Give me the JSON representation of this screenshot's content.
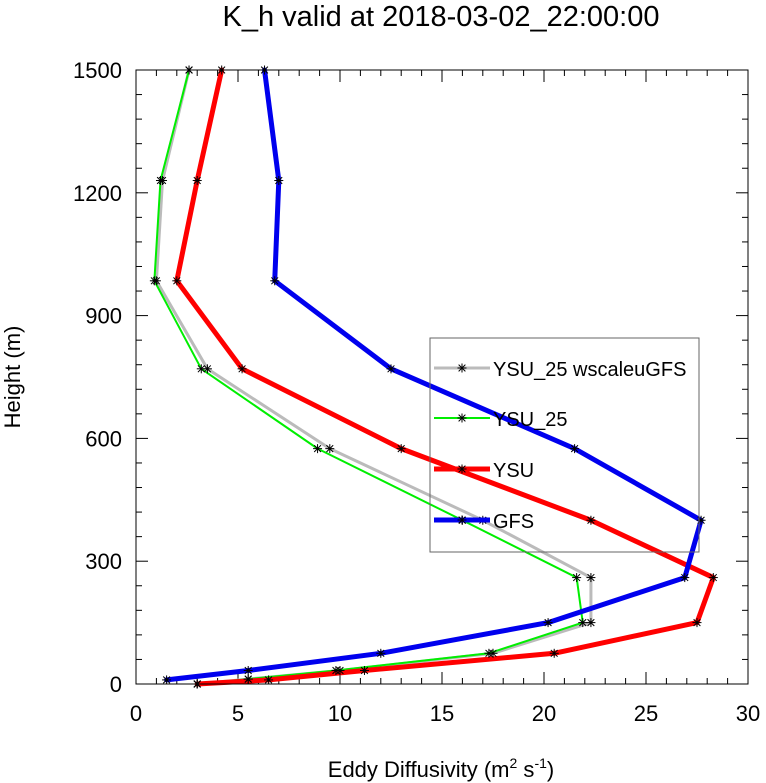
{
  "chart_data": {
    "type": "line",
    "title": "K_h valid at 2018-03-02_22:00:00",
    "xlabel": "Eddy Diffusivity (m",
    "xlabel_sup1": "2",
    "xlabel_mid": " s",
    "xlabel_sup2": "-1",
    "xlabel_end": ")",
    "ylabel": "Height (m)",
    "xlim": [
      0,
      30
    ],
    "ylim": [
      0,
      1500
    ],
    "x_ticks": [
      0,
      5,
      10,
      15,
      20,
      25,
      30
    ],
    "y_ticks": [
      0,
      300,
      600,
      900,
      1200,
      1500
    ],
    "x_tick_labels": [
      "0",
      "5",
      "10",
      "15",
      "20",
      "25",
      "30"
    ],
    "y_tick_labels": [
      "0",
      "300",
      "600",
      "900",
      "1200",
      "1500"
    ],
    "legend_position": "center-right",
    "series": [
      {
        "name": "YSU_25 wscaleuGFS",
        "color": "#bbbbbb",
        "line_width": 3,
        "marker": "asterisk",
        "points": [
          [
            3.0,
            0
          ],
          [
            5.5,
            12
          ],
          [
            10.0,
            33
          ],
          [
            17.5,
            75
          ],
          [
            22.3,
            150
          ],
          [
            22.3,
            260
          ],
          [
            17.0,
            400
          ],
          [
            9.5,
            575
          ],
          [
            3.5,
            770
          ],
          [
            1.0,
            985
          ],
          [
            1.3,
            1230
          ],
          [
            2.6,
            1500
          ]
        ]
      },
      {
        "name": "YSU_25",
        "color": "#00ee00",
        "line_width": 2,
        "marker": "asterisk",
        "points": [
          [
            3.0,
            0
          ],
          [
            5.5,
            12
          ],
          [
            9.8,
            33
          ],
          [
            17.3,
            75
          ],
          [
            21.9,
            150
          ],
          [
            21.6,
            260
          ],
          [
            16.0,
            400
          ],
          [
            8.9,
            575
          ],
          [
            3.2,
            770
          ],
          [
            0.9,
            985
          ],
          [
            1.2,
            1230
          ],
          [
            2.6,
            1500
          ]
        ]
      },
      {
        "name": "YSU",
        "color": "#ff0000",
        "line_width": 5,
        "marker": "asterisk",
        "points": [
          [
            3.0,
            0
          ],
          [
            6.5,
            10
          ],
          [
            11.2,
            33
          ],
          [
            20.5,
            75
          ],
          [
            27.5,
            150
          ],
          [
            28.3,
            260
          ],
          [
            22.3,
            400
          ],
          [
            13.0,
            575
          ],
          [
            5.2,
            770
          ],
          [
            2.0,
            985
          ],
          [
            3.0,
            1230
          ],
          [
            4.2,
            1500
          ]
        ]
      },
      {
        "name": "GFS",
        "color": "#0000ee",
        "line_width": 5,
        "marker": "asterisk",
        "points": [
          [
            1.5,
            10
          ],
          [
            5.5,
            33
          ],
          [
            12.0,
            75
          ],
          [
            20.2,
            150
          ],
          [
            26.9,
            260
          ],
          [
            27.7,
            400
          ],
          [
            21.5,
            575
          ],
          [
            12.5,
            770
          ],
          [
            6.8,
            985
          ],
          [
            7.0,
            1230
          ],
          [
            6.3,
            1500
          ]
        ]
      }
    ]
  }
}
